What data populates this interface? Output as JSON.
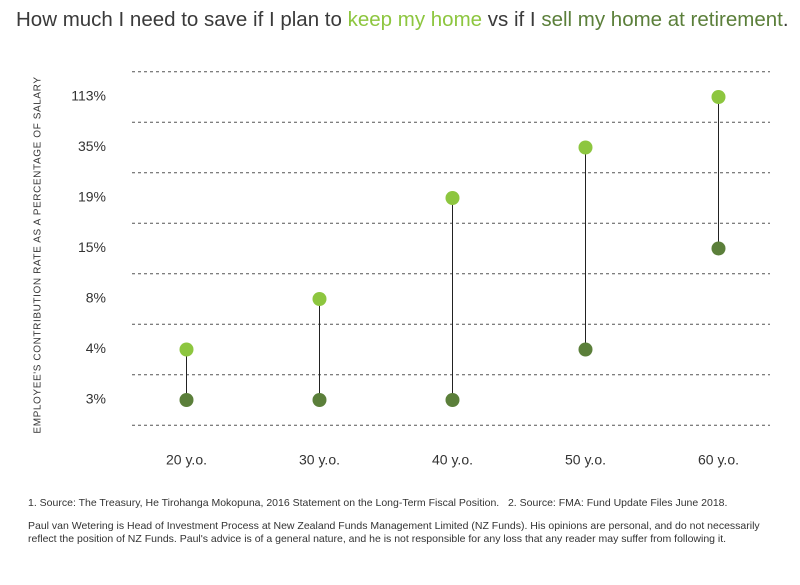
{
  "chart_data": {
    "type": "dumbbell",
    "title_parts": [
      "How much I need to save if I plan to",
      "vs if I",
      "."
    ],
    "y_label": "EMPLOYEE'S CONTRIBUTION RATE AS A PERCENTAGE OF SALARY",
    "categories": [
      "20 y.o.",
      "30 y.o.",
      "40 y.o.",
      "50 y.o.",
      "60 y.o."
    ],
    "yscale": "ordinal",
    "yticks": [
      {
        "value": 3,
        "label": "3%"
      },
      {
        "value": 4,
        "label": "4%"
      },
      {
        "value": 8,
        "label": "8%"
      },
      {
        "value": 15,
        "label": "15%"
      },
      {
        "value": 19,
        "label": "19%"
      },
      {
        "value": 35,
        "label": "35%"
      },
      {
        "value": 113,
        "label": "113%"
      }
    ],
    "grid": true,
    "series": [
      {
        "name": "keep my home",
        "color": "#8dc63f",
        "values": [
          4,
          8,
          19,
          35,
          113
        ]
      },
      {
        "name": "sell my home at retirement",
        "color": "#5b7f3a",
        "values": [
          3,
          3,
          3,
          4,
          15
        ]
      }
    ]
  },
  "notes": {
    "sources": [
      "1. Source: The Treasury, He Tirohanga Mokopuna, 2016 Statement on the Long-Term Fiscal Position.",
      "2. Source: FMA: Fund Update Files June 2018."
    ],
    "disclaimer": "Paul van Wetering is Head of Investment Process at New Zealand Funds Management Limited (NZ Funds). His opinions are personal, and do not necessarily reflect the position of NZ Funds. Paul's advice is of a general nature, and he is not responsible for any loss that any reader may suffer from following it."
  }
}
